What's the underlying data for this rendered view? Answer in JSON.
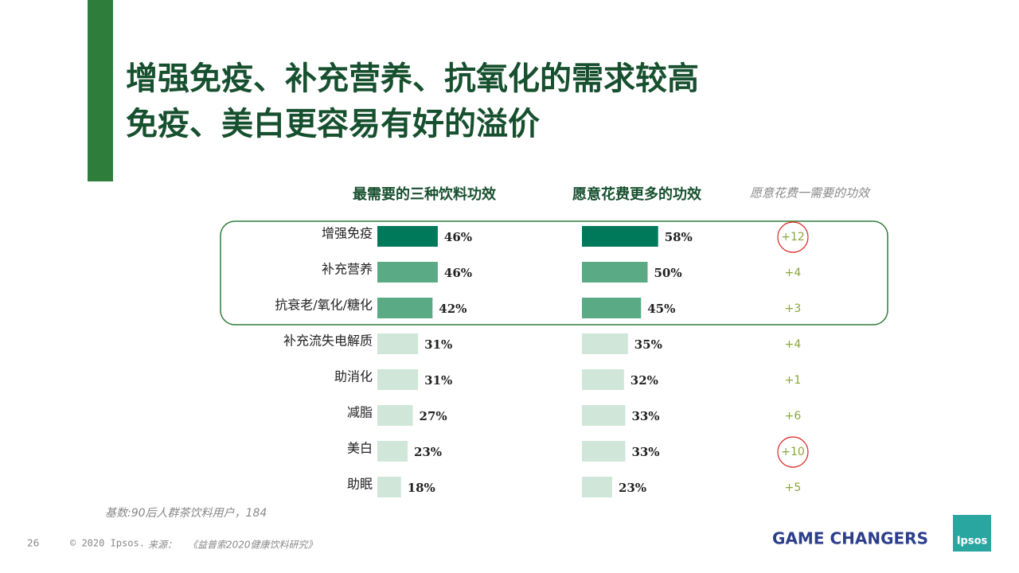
{
  "title": [
    "增强免疫、补充营养、抗氧化的需求较高",
    "免疫、美白更容易有好的溢价"
  ],
  "chart_data": [
    {
      "type": "bar",
      "orientation": "horizontal",
      "title": "最需要的三种饮料功效",
      "categories": [
        "增强免疫",
        "补充营养",
        "抗衰老/氧化/糖化",
        "补充流失电解质",
        "助消化",
        "减脂",
        "美白",
        "助眠"
      ],
      "values": [
        46,
        46,
        42,
        31,
        31,
        27,
        23,
        18
      ],
      "value_labels": [
        "46%",
        "46%",
        "42%",
        "31%",
        "31%",
        "27%",
        "23%",
        "18%"
      ],
      "colors": [
        "#00785a",
        "#5aaa86",
        "#5aaa86",
        "#cfe6d9",
        "#cfe6d9",
        "#cfe6d9",
        "#cfe6d9",
        "#cfe6d9"
      ],
      "xlim": [
        0,
        100
      ]
    },
    {
      "type": "bar",
      "orientation": "horizontal",
      "title": "愿意花费更多的功效",
      "values": [
        58,
        50,
        45,
        35,
        32,
        33,
        33,
        23
      ],
      "value_labels": [
        "58%",
        "50%",
        "45%",
        "35%",
        "32%",
        "33%",
        "33%",
        "23%"
      ],
      "colors": [
        "#00785a",
        "#5aaa86",
        "#5aaa86",
        "#cfe6d9",
        "#cfe6d9",
        "#cfe6d9",
        "#cfe6d9",
        "#cfe6d9"
      ],
      "xlim": [
        0,
        100
      ]
    }
  ],
  "difference": {
    "title": "愿意花费一需要的功效",
    "labels": [
      "+12",
      "+4",
      "+3",
      "+4",
      "+1",
      "+6",
      "+10",
      "+5"
    ],
    "circled": [
      true,
      false,
      false,
      false,
      false,
      false,
      true,
      false
    ]
  },
  "footnote": "基数:90后人群茶饮料用户，184",
  "page_number": "26",
  "copyright": "© 2020 Ipsos.",
  "source_label": "来源：",
  "source": "《益普索2020健康饮料研究》",
  "brand": "GAME CHANGERS",
  "logo": "Ipsos"
}
